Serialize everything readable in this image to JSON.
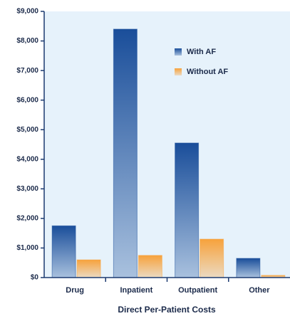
{
  "chart_data": {
    "type": "bar",
    "x_label": "Direct Per-Patient Costs",
    "categories": [
      "Drug",
      "Inpatient",
      "Outpatient",
      "Other"
    ],
    "series": [
      {
        "name": "With AF",
        "color": "#1a4e9a",
        "values": [
          1750,
          8400,
          4550,
          650
        ]
      },
      {
        "name": "Without AF",
        "color": "#f7a23c",
        "values": [
          600,
          750,
          1300,
          75
        ]
      }
    ],
    "ylim": [
      0,
      9000
    ],
    "yticks": [
      {
        "value": 0,
        "label": "$0"
      },
      {
        "value": 1000,
        "label": "$1,000"
      },
      {
        "value": 2000,
        "label": "$2,000"
      },
      {
        "value": 3000,
        "label": "$3,000"
      },
      {
        "value": 4000,
        "label": "$4,000"
      },
      {
        "value": 5000,
        "label": "$5,000"
      },
      {
        "value": 6000,
        "label": "$6,000"
      },
      {
        "value": 7000,
        "label": "$7,000"
      },
      {
        "value": 8000,
        "label": "$8,000"
      },
      {
        "value": 9000,
        "label": "$9,000"
      }
    ],
    "legend": "upper right",
    "background": "#e6f2fb"
  }
}
